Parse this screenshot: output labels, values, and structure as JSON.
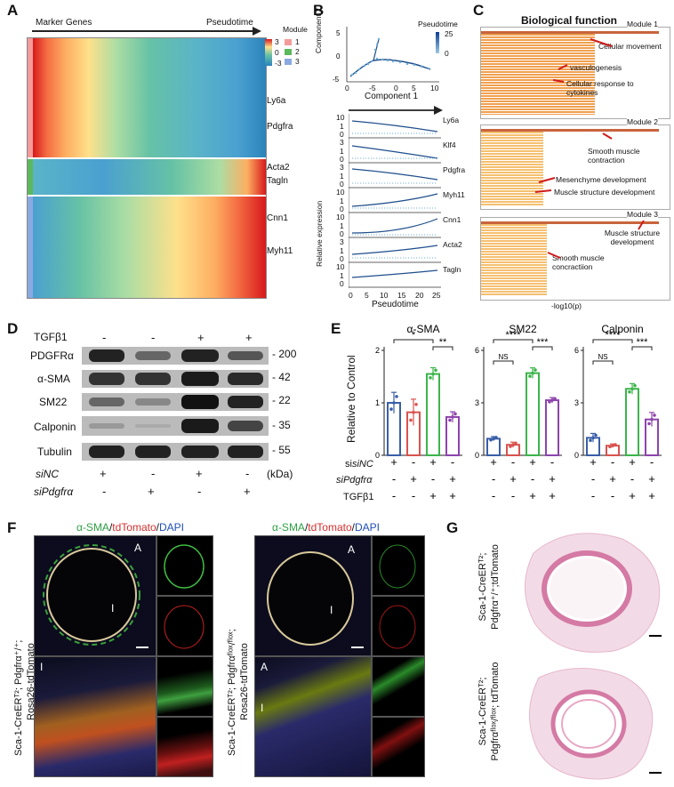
{
  "panels": {
    "A": {
      "label": "A",
      "marker_genes": "Marker Genes",
      "pseudotime": "Pseudotime",
      "scale_values": [
        "3",
        "0",
        "-3"
      ],
      "module_title": "Module",
      "modules": [
        {
          "name": "1",
          "color": "#f49b9b"
        },
        {
          "name": "2",
          "color": "#5cb85c"
        },
        {
          "name": "3",
          "color": "#8aa9e0"
        }
      ],
      "genes": [
        "Ly6a",
        "Pdgfra",
        "Acta2",
        "Tagln",
        "Cnn1",
        "Myh11"
      ]
    },
    "B": {
      "label": "B",
      "top_legend_title": "Pseudotime",
      "top_legend_max": "25",
      "top_legend_min": "0",
      "top_xlabel": "Component 1",
      "top_ylabel": "Component 2",
      "top_xticks": [
        "0",
        "-5",
        "0",
        "5",
        "10"
      ],
      "top_yticks": [
        "5",
        "0",
        "-5"
      ],
      "ylabel": "Relative expression",
      "xlabel": "Pseudotime",
      "xticks": [
        "0",
        "5",
        "10",
        "15",
        "20",
        "25"
      ],
      "rows": [
        {
          "gene": "Ly6a",
          "ticks": [
            "10",
            "1",
            "0"
          ]
        },
        {
          "gene": "Klf4",
          "ticks": [
            "3",
            "1",
            "0"
          ]
        },
        {
          "gene": "Pdgfra",
          "ticks": [
            "3",
            "1",
            "0"
          ]
        },
        {
          "gene": "Myh11",
          "ticks": [
            "10",
            "1",
            "0"
          ]
        },
        {
          "gene": "Cnn1",
          "ticks": [
            "10",
            "1",
            "0"
          ]
        },
        {
          "gene": "Acta2",
          "ticks": [
            "3",
            "1",
            "0"
          ]
        },
        {
          "gene": "Tagln",
          "ticks": [
            "10",
            "1",
            "0"
          ]
        }
      ]
    },
    "C": {
      "label": "C",
      "title": "Biological function",
      "xlabel": "-log10(p)",
      "modules": [
        {
          "name": "Module 1",
          "annotations": [
            "Cellular movement",
            "vasculogenesis",
            "Cellular response to cytokines"
          ]
        },
        {
          "name": "Module 2",
          "annotations": [
            "Smooth muscle contraction",
            "Mesenchyme development",
            "Muscle structure development"
          ]
        },
        {
          "name": "Module 3",
          "annotations": [
            "Muscle structure development",
            "Smooth muscle concractiion"
          ]
        }
      ]
    },
    "D": {
      "label": "D",
      "tgf": "TGFβ1",
      "tgf_signs": [
        "-",
        "-",
        "+",
        "+"
      ],
      "proteins": [
        "PDGFRα",
        "α-SMA",
        "SM22",
        "Calponin",
        "Tubulin"
      ],
      "kda": [
        "200",
        "42",
        "22",
        "35",
        "55"
      ],
      "kda_unit": "(kDa)",
      "sinc": "siNC",
      "sinc_signs": [
        "+",
        "-",
        "+",
        "-"
      ],
      "sipdgfra": "siPdgfrα",
      "sipdgfra_signs": [
        "-",
        "+",
        "-",
        "+"
      ]
    },
    "E": {
      "label": "E",
      "ylabel": "Relative to Control",
      "row_labels": [
        "siNC",
        "siPdgfrα",
        "TGFβ1"
      ],
      "row_signs": [
        [
          "+",
          "-",
          "+",
          "-"
        ],
        [
          "-",
          "+",
          "-",
          "+"
        ],
        [
          "-",
          "-",
          "+",
          "+"
        ]
      ],
      "colors": [
        "#3a5fa8",
        "#d9534f",
        "#3bb54a",
        "#8e44ad"
      ]
    },
    "F": {
      "label": "F",
      "stain_g": "α-SMA",
      "stain_r": "tdTomato",
      "stain_b": "DAPI",
      "slash": "/",
      "left_row_label_1": "Sca-1-CreERᵀ²; Pdgfrα⁺/⁺;",
      "left_row_label_2": "Rosa26-tdTomato",
      "right_row_label_1": "Sca-1-CreERᵀ²; Pdgfrαᶠˡᵒˣ/ᶠˡᵒˣ;",
      "right_row_label_2": "Rosa26-tdTomato",
      "marker_A": "A",
      "marker_I": "I"
    },
    "G": {
      "label": "G",
      "top_label_1": "Sca-1-CreERᵀ²;",
      "top_label_2": "Pdgfrα⁺/⁺;tdTomato",
      "bottom_label_1": "Sca-1-CreERᵀ²;",
      "bottom_label_2": "Pdgfrαᶠˡᵒˣ/ᶠˡᵒˣ; tdTomato"
    }
  },
  "chart_data": [
    {
      "type": "bar",
      "title": "α-SMA",
      "categories": [
        "siNC",
        "siPdgfrα",
        "siNC+TGFβ1",
        "siPdgfrα+TGFβ1"
      ],
      "values": [
        1.0,
        0.82,
        1.55,
        0.73
      ],
      "errors": [
        0.2,
        0.25,
        0.12,
        0.1
      ],
      "ylim": [
        0,
        2
      ],
      "yticks": [
        "0",
        "1",
        "2"
      ],
      "annotations": [
        {
          "from": 0,
          "to": 2,
          "text": "*"
        },
        {
          "from": 2,
          "to": 3,
          "text": "**"
        }
      ]
    },
    {
      "type": "bar",
      "title": "SM22",
      "categories": [
        "siNC",
        "siPdgfrα",
        "siNC+TGFβ1",
        "siPdgfrα+TGFβ1"
      ],
      "values": [
        0.95,
        0.6,
        4.7,
        3.15
      ],
      "errors": [
        0.12,
        0.15,
        0.3,
        0.15
      ],
      "ylim": [
        0,
        6
      ],
      "yticks": [
        "0",
        "3",
        "6"
      ],
      "annotations": [
        {
          "from": 0,
          "to": 2,
          "text": "****"
        },
        {
          "from": 0,
          "to": 1,
          "text": "NS"
        },
        {
          "from": 2,
          "to": 3,
          "text": "***"
        }
      ]
    },
    {
      "type": "bar",
      "title": "Calponin",
      "categories": [
        "siNC",
        "siPdgfrα",
        "siNC+TGFβ1",
        "siPdgfrα+TGFβ1"
      ],
      "values": [
        1.0,
        0.55,
        3.8,
        2.05
      ],
      "errors": [
        0.25,
        0.1,
        0.3,
        0.4
      ],
      "ylim": [
        0,
        6
      ],
      "yticks": [
        "0",
        "3",
        "6"
      ],
      "annotations": [
        {
          "from": 0,
          "to": 2,
          "text": "****"
        },
        {
          "from": 0,
          "to": 1,
          "text": "NS"
        },
        {
          "from": 2,
          "to": 3,
          "text": "***"
        }
      ]
    }
  ]
}
